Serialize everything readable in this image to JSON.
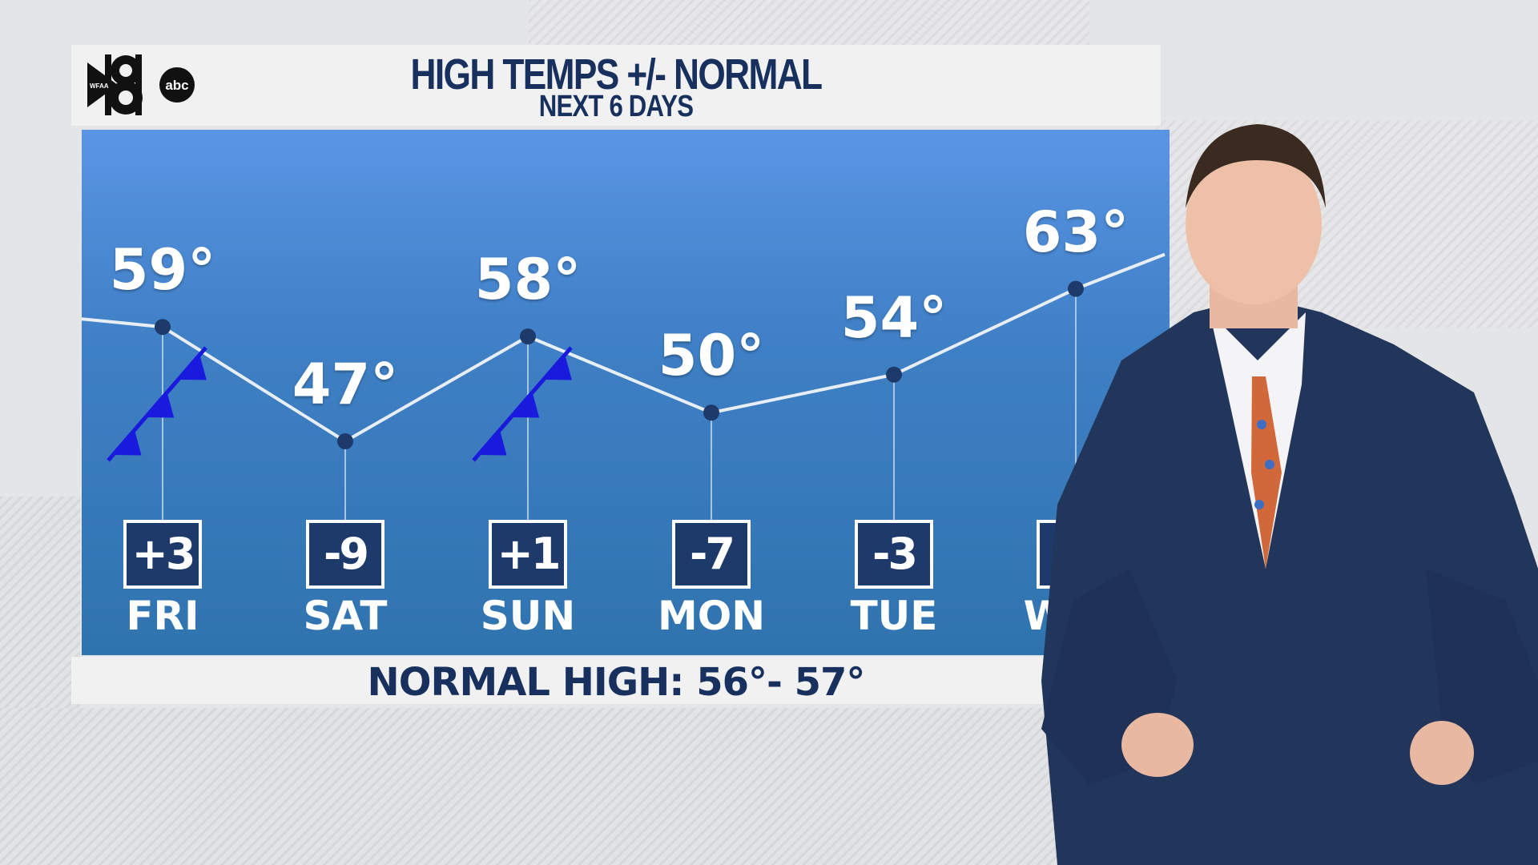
{
  "header": {
    "title": "HIGH TEMPS  +/- NORMAL",
    "subtitle": "NEXT 6 DAYS",
    "logo": {
      "station": "WFAA",
      "number": "8",
      "network": "abc"
    }
  },
  "footer": {
    "normal_high": "NORMAL HIGH: 56°- 57°"
  },
  "colors": {
    "navy": "#17305e",
    "box": "#1d3a6b",
    "panel_top": "#5a95e4",
    "panel_bottom": "#2f73ae",
    "cold_front": "#1a1adf"
  },
  "chart_data": {
    "type": "line",
    "title": "HIGH TEMPS  +/- NORMAL",
    "subtitle": "NEXT 6 DAYS",
    "categories": [
      "FRI",
      "SAT",
      "SUN",
      "MON",
      "TUE",
      "WED"
    ],
    "values": [
      59,
      47,
      58,
      50,
      54,
      63
    ],
    "labels": [
      "59°",
      "47°",
      "58°",
      "50°",
      "54°",
      "63°"
    ],
    "departures": [
      "+3",
      "-9",
      "+1",
      "-7",
      "-3",
      ""
    ],
    "cold_fronts": [
      "FRI",
      "SUN"
    ],
    "grid": false
  }
}
